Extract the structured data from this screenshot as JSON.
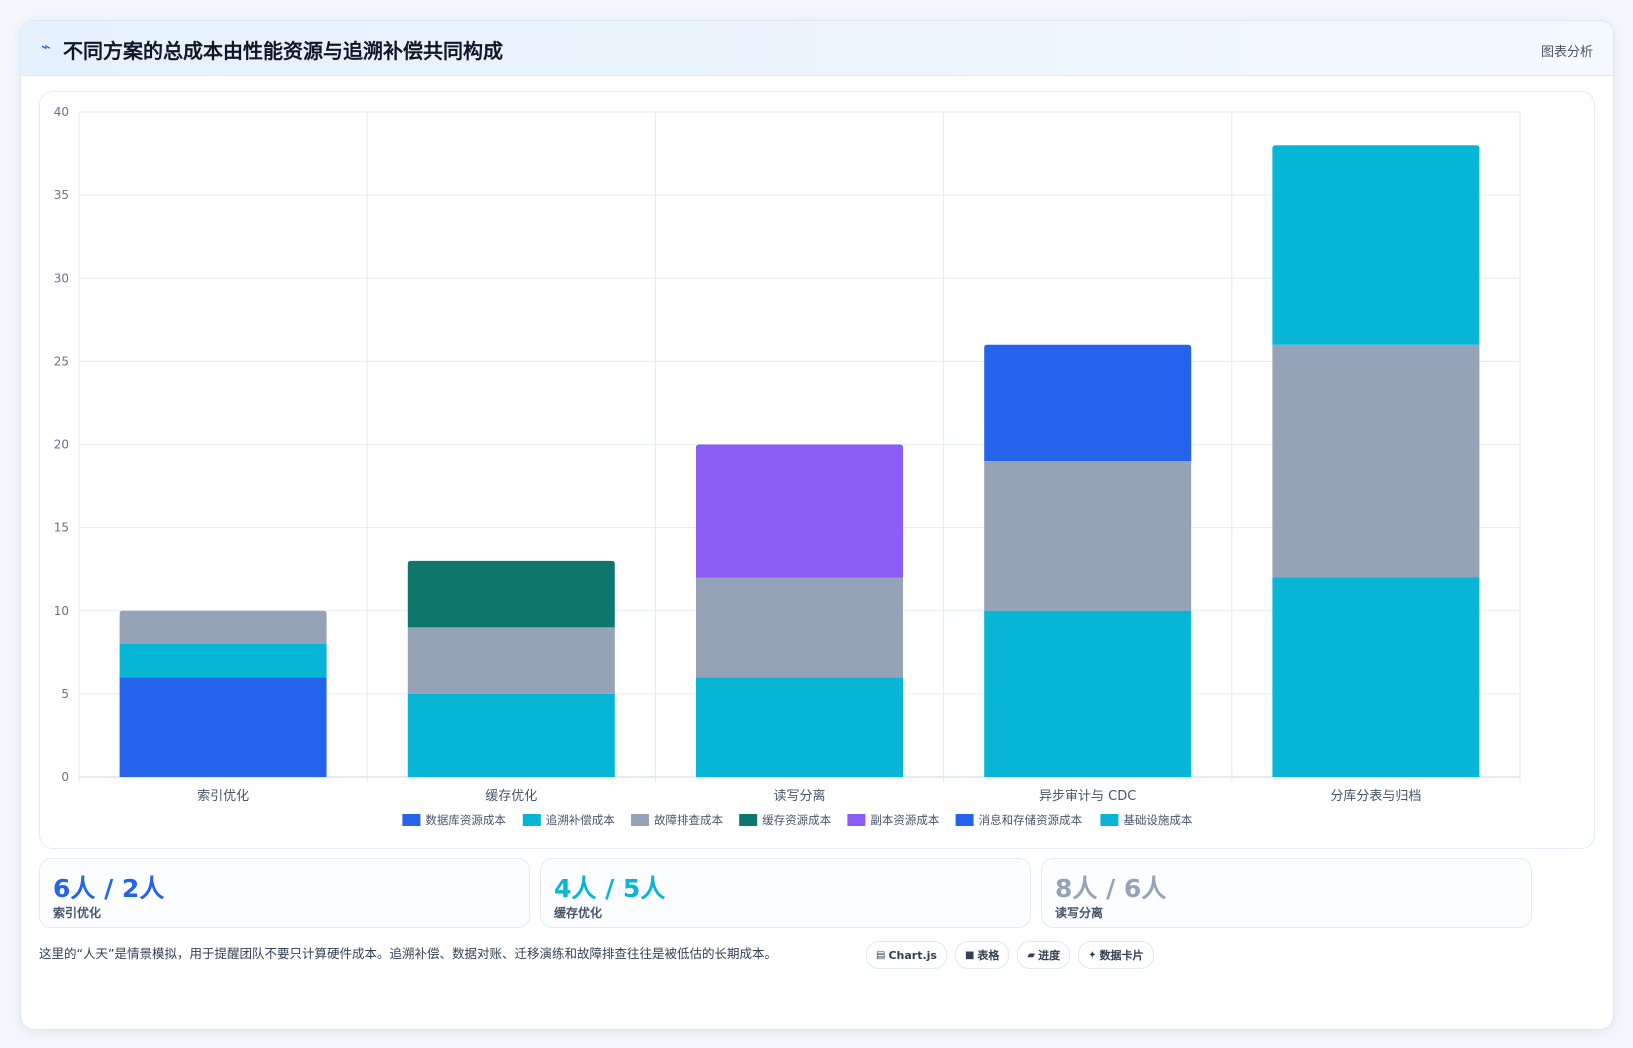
{
  "header": {
    "icon": "pulse-icon",
    "title": "不同方案的总成本由性能资源与追溯补偿共同构成",
    "tag": "图表分析"
  },
  "chart_data": {
    "type": "bar",
    "stacked": true,
    "categories": [
      "索引优化",
      "缓存优化",
      "读写分离",
      "异步审计与 CDC",
      "分库分表与归档"
    ],
    "ylim": [
      0,
      40
    ],
    "yticks": [
      0,
      5,
      10,
      15,
      20,
      25,
      30,
      35,
      40
    ],
    "grid": true,
    "legend_position": "bottom",
    "series": [
      {
        "name": "数据库资源成本",
        "color": "#2563eb",
        "values": [
          6,
          null,
          null,
          null,
          null
        ]
      },
      {
        "name": "追溯补偿成本",
        "color": "#06b6d4",
        "values": [
          2,
          5,
          6,
          10,
          12
        ]
      },
      {
        "name": "故障排查成本",
        "color": "#94a3b8",
        "values": [
          2,
          4,
          6,
          9,
          14
        ]
      },
      {
        "name": "缓存资源成本",
        "color": "#0f766e",
        "values": [
          null,
          4,
          null,
          null,
          null
        ]
      },
      {
        "name": "副本资源成本",
        "color": "#8b5cf6",
        "values": [
          null,
          null,
          8,
          null,
          null
        ]
      },
      {
        "name": "消息和存储资源成本",
        "color": "#2563eb",
        "values": [
          null,
          null,
          null,
          7,
          null
        ]
      },
      {
        "name": "基础设施成本",
        "color": "#06b6d4",
        "values": [
          null,
          null,
          null,
          null,
          12
        ]
      }
    ]
  },
  "stats": [
    {
      "value": "6人 / 2人",
      "label": "索引优化",
      "color": "#2563eb"
    },
    {
      "value": "4人 / 5人",
      "label": "缓存优化",
      "color": "#06b6d4"
    },
    {
      "value": "8人 / 6人",
      "label": "读写分离",
      "color": "#94a3b8"
    }
  ],
  "footnote": "这里的“人天”是情景模拟，用于提醒团队不要只计算硬件成本。追溯补偿、数据对账、迁移演练和故障排查往往是被低估的长期成本。",
  "chips": [
    {
      "icon": "chart-icon",
      "glyph": "▤",
      "label": "Chart.js"
    },
    {
      "icon": "table-icon",
      "glyph": "■",
      "label": "表格"
    },
    {
      "icon": "progress-icon",
      "glyph": "▰",
      "label": "进度"
    },
    {
      "icon": "sparkle-icon",
      "glyph": "✦",
      "label": "数据卡片"
    }
  ]
}
